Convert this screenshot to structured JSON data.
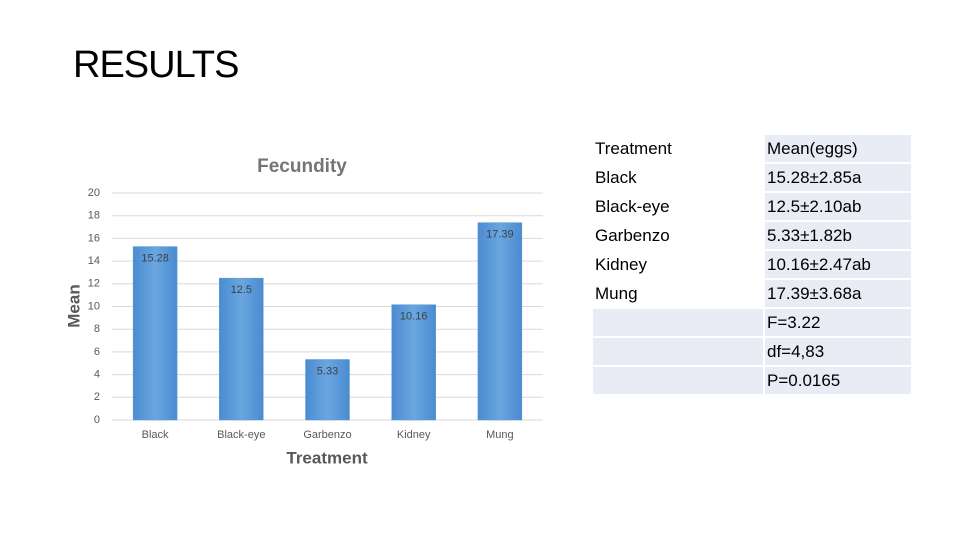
{
  "title": "RESULTS",
  "chart_data": {
    "type": "bar",
    "title": "Fecundity",
    "x_label": "Treatment",
    "y_label": "Mean",
    "categories": [
      "Black",
      "Black-eye",
      "Garbenzo",
      "Kidney",
      "Mung"
    ],
    "values": [
      15.28,
      12.5,
      5.33,
      10.16,
      17.39
    ],
    "color": "#5b9bd5",
    "ylim": [
      0,
      20
    ],
    "yticks": [
      0,
      2,
      4,
      6,
      8,
      10,
      12,
      14,
      16,
      18,
      20
    ],
    "grid": true
  },
  "table": {
    "rows": [
      [
        "Treatment",
        "Mean(eggs)"
      ],
      [
        "Black",
        "15.28±2.85a"
      ],
      [
        "Black-eye",
        "12.5±2.10ab"
      ],
      [
        "Garbenzo",
        "5.33±1.82b"
      ],
      [
        "Kidney",
        "10.16±2.47ab"
      ],
      [
        "Mung",
        "17.39±3.68a"
      ]
    ],
    "stats": [
      "F=3.22",
      "df=4,83",
      "P=0.0165"
    ]
  }
}
